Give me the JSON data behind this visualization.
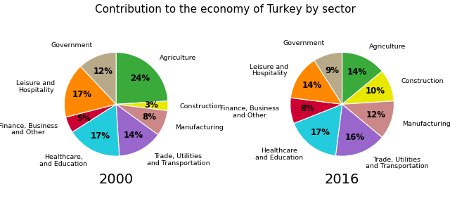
{
  "title": "Contribution to the economy of Turkey by sector",
  "chart_2000": {
    "label": "2000",
    "sectors": [
      "Agriculture",
      "Construction",
      "Manufacturing",
      "Trade, Utilities\nand Transportation",
      "Healthcare,\nand Education",
      "Finance, Business\nand Other",
      "Leisure and\nHospitality",
      "Government"
    ],
    "values": [
      24,
      3,
      8,
      14,
      17,
      5,
      17,
      12
    ],
    "colors": [
      "#3aaa3a",
      "#e8e800",
      "#cc8888",
      "#9966cc",
      "#22ccdd",
      "#cc0033",
      "#ff8800",
      "#b8aa88"
    ],
    "start_angle": 90,
    "pct_distance": 0.68
  },
  "chart_2016": {
    "label": "2016",
    "sectors": [
      "Agriculture",
      "Construction",
      "Manufacturing",
      "Trade, Utilities\nand Transportation",
      "Healthcare\nand Education",
      "Finance, Business\nand Other",
      "Leisure and\nHospitality",
      "Government"
    ],
    "values": [
      14,
      10,
      12,
      16,
      17,
      8,
      14,
      9
    ],
    "colors": [
      "#3aaa3a",
      "#e8e800",
      "#cc8888",
      "#9966cc",
      "#22ccdd",
      "#cc0033",
      "#ff8800",
      "#b8aa88"
    ],
    "start_angle": 90,
    "pct_distance": 0.68
  },
  "title_fontsize": 11,
  "label_fontsize": 6.8,
  "pct_fontsize": 8.5,
  "year_fontsize": 14,
  "background_color": "#ffffff"
}
